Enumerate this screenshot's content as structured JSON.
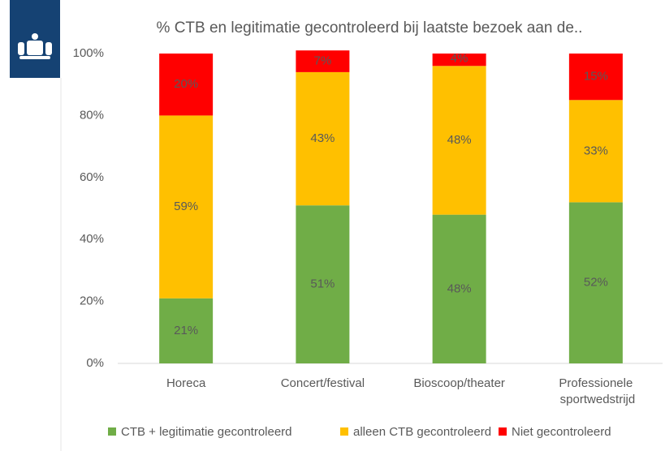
{
  "chart_data": {
    "type": "stacked_bar",
    "title": "% CTB en legitimatie gecontroleerd bij laatste bezoek aan de..",
    "categories": [
      "Horeca",
      "Concert/festival",
      "Bioscoop/theater",
      "Professionele sportwedstrijd"
    ],
    "series": [
      {
        "name": "CTB + legitimatie gecontroleerd",
        "color": "#70ad47",
        "values": [
          21,
          51,
          48,
          52
        ],
        "value_labels": [
          "21%",
          "51%",
          "48%",
          "52%"
        ]
      },
      {
        "name": "alleen CTB gecontroleerd",
        "color": "#ffc000",
        "values": [
          59,
          43,
          48,
          33
        ],
        "value_labels": [
          "59%",
          "43%",
          "48%",
          "33%"
        ]
      },
      {
        "name": "Niet gecontroleerd",
        "color": "#ff0000",
        "values": [
          20,
          7,
          4,
          15
        ],
        "value_labels": [
          "20%",
          "7%",
          "4%",
          "15%"
        ]
      }
    ],
    "ylim": [
      0,
      100
    ],
    "yticks": [
      {
        "value": 0,
        "label": "0%"
      },
      {
        "value": 20,
        "label": "20%"
      },
      {
        "value": 40,
        "label": "40%"
      },
      {
        "value": 60,
        "label": "60%"
      },
      {
        "value": 80,
        "label": "80%"
      },
      {
        "value": 100,
        "label": "100%"
      }
    ],
    "legend": "bottom"
  }
}
